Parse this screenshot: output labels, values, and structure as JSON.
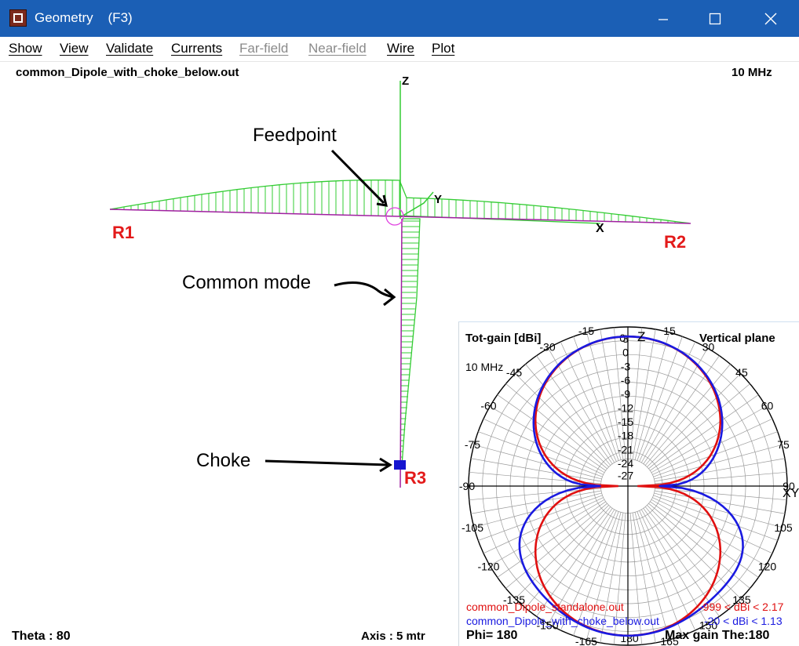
{
  "window": {
    "title": "Geometry    (F3)"
  },
  "menu": [
    "Show",
    "View",
    "Validate",
    "Currents",
    "Far-field",
    "Near-field",
    "Wire",
    "Plot"
  ],
  "geometry": {
    "filename": "common_Dipole_with_choke_below.out",
    "frequency": "10 MHz",
    "theta": "Theta : 80",
    "axis": "Axis : 5 mtr",
    "axis_labels": {
      "z": "Z",
      "y": "Y",
      "x": "X"
    },
    "wire_labels": [
      "R1",
      "R2",
      "R3"
    ],
    "annotations": [
      "Feedpoint",
      "Common mode",
      "Choke"
    ]
  },
  "polar": {
    "title": "Tot-gain [dBi]",
    "plane": "Vertical plane",
    "freq": "10 MHz",
    "angle_labels": [
      "0",
      "15",
      "30",
      "45",
      "60",
      "75",
      "90",
      "105",
      "120",
      "135",
      "150",
      "165",
      "180",
      "-15",
      "-30",
      "-45",
      "-60",
      "-75",
      "-90",
      "-105",
      "-120",
      "-135",
      "-150",
      "-165"
    ],
    "ring_labels": [
      "3",
      "0",
      "-3",
      "-6",
      "-9",
      "-12",
      "-15",
      "-18",
      "-21",
      "-24",
      "-27"
    ],
    "axis_labels": {
      "z": "Z",
      "x": "X",
      "y": "Y"
    },
    "legend": [
      {
        "name": "common_Dipole_standalone.out",
        "range": "-999 < dBi < 2.17",
        "color": "#e01010"
      },
      {
        "name": "common_Dipole_with_choke_below.out",
        "range": "-20 < dBi < 1.13",
        "color": "#1a1ae0"
      }
    ],
    "phi": "Phi= 180",
    "max_gain": "Max gain The:180"
  },
  "colors": {
    "titlebar": "#1b5fb5",
    "wire_current": "#33cc33",
    "wire": "#a020a0",
    "red_trace": "#e01010",
    "blue_trace": "#1a1ae0",
    "label_red": "#e31a1a"
  }
}
